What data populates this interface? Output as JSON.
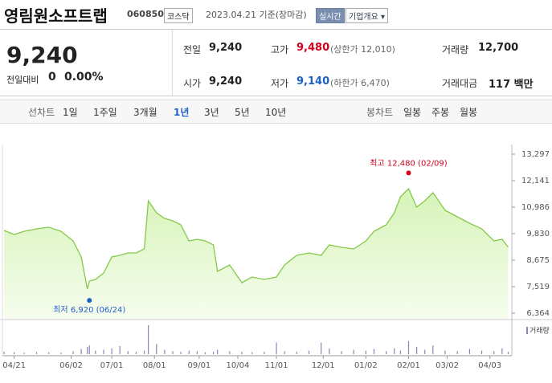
{
  "header": {
    "name": "영림원소프트랩",
    "code": "060850",
    "market": "코스닥",
    "date": "2023.04.21 기준(장마감)",
    "realtime": "실시간",
    "overview": "기업개요 ▾"
  },
  "quote": {
    "price": "9,240",
    "change_label": "전일대비",
    "change": "0",
    "change_rate": "0.00%",
    "fields": [
      {
        "label": "전일",
        "value": "9,240"
      },
      {
        "label": "고가",
        "value": "9,480",
        "note": "(상한가 12,010)"
      },
      {
        "label": "거래량",
        "value": "12,700"
      },
      {
        "label": "시가",
        "value": "9,240"
      },
      {
        "label": "저가",
        "value": "9,140",
        "note": "(하한가 6,470)"
      },
      {
        "label": "거래대금",
        "value": "117 백만"
      }
    ]
  },
  "tabs": {
    "line_label": "선차트",
    "line": [
      "1일",
      "1주일",
      "3개월",
      "1년",
      "3년",
      "5년",
      "10년"
    ],
    "selected_index": 3,
    "candle_label": "봉차트",
    "candle": [
      "일봉",
      "주봉",
      "월봉"
    ]
  },
  "chart_data": {
    "type": "line",
    "x": [
      0,
      5,
      10,
      16,
      22,
      28,
      34,
      38,
      41,
      42,
      45,
      49,
      53,
      57,
      61,
      65,
      69,
      71,
      75,
      79,
      83,
      87,
      91,
      95,
      99,
      103,
      105,
      111,
      117,
      122,
      128,
      134,
      138,
      144,
      150,
      156,
      160,
      166,
      172,
      178,
      182,
      188,
      192,
      195,
      199,
      203,
      207,
      211,
      217,
      223,
      229,
      235,
      241,
      245,
      248
    ],
    "series": [
      {
        "color": "#84c94a",
        "values": [
          9971,
          9796,
          9936,
          10041,
          10111,
          9936,
          9516,
          8816,
          7415,
          7765,
          7835,
          8115,
          8816,
          8886,
          8991,
          8991,
          9166,
          11266,
          10741,
          10496,
          10391,
          10216,
          9516,
          9586,
          9516,
          9341,
          8185,
          8465,
          7695,
          7940,
          7835,
          7940,
          8465,
          8886,
          8991,
          8886,
          9341,
          9236,
          9166,
          9516,
          9936,
          10216,
          10741,
          11441,
          11791,
          10986,
          11266,
          11616,
          10846,
          10566,
          10286,
          10041,
          9516,
          9586,
          9240
        ]
      }
    ],
    "volume": {
      "name": "거래량",
      "color": "#8a86b4",
      "ylim": [
        0,
        100
      ],
      "values": [
        8,
        6,
        5,
        7,
        6,
        5,
        10,
        18,
        25,
        30,
        12,
        15,
        20,
        28,
        10,
        8,
        12,
        100,
        35,
        15,
        10,
        8,
        12,
        10,
        6,
        8,
        15,
        10,
        8,
        6,
        8,
        40,
        10,
        8,
        12,
        40,
        20,
        10,
        15,
        12,
        18,
        10,
        20,
        12,
        45,
        25,
        15,
        30,
        12,
        10,
        18,
        12,
        10,
        20,
        8
      ]
    },
    "xlim": [
      0,
      249
    ],
    "xticks": [
      {
        "value": 5,
        "label": "04/21"
      },
      {
        "value": 33,
        "label": "06/02"
      },
      {
        "value": 53,
        "label": "07/01"
      },
      {
        "value": 74,
        "label": "08/01"
      },
      {
        "value": 96,
        "label": "09/01"
      },
      {
        "value": 115,
        "label": "10/04"
      },
      {
        "value": 134,
        "label": "11/01"
      },
      {
        "value": 157,
        "label": "12/01"
      },
      {
        "value": 178,
        "label": "01/02"
      },
      {
        "value": 199,
        "label": "02/01"
      },
      {
        "value": 218,
        "label": "03/02"
      },
      {
        "value": 239,
        "label": "04/03"
      }
    ],
    "ylim": [
      6364,
      13297
    ],
    "yticks": [
      {
        "value": 13297,
        "label": "13,297"
      },
      {
        "value": 12141,
        "label": "12,141"
      },
      {
        "value": 10986,
        "label": "10,986"
      },
      {
        "value": 9830,
        "label": "9,830"
      },
      {
        "value": 8675,
        "label": "8,675"
      },
      {
        "value": 7519,
        "label": "7,519"
      },
      {
        "value": 6364,
        "label": "6,364"
      }
    ],
    "annotations": [
      {
        "label": "최고",
        "x": 199,
        "value": 12480,
        "value_label": "12,480",
        "date": "(02/09)",
        "color": "#d0021b"
      },
      {
        "label": "최저",
        "x": 42,
        "value": 6920,
        "value_label": "6,920",
        "date": "(06/24)",
        "color": "#1f5fc8"
      }
    ]
  }
}
